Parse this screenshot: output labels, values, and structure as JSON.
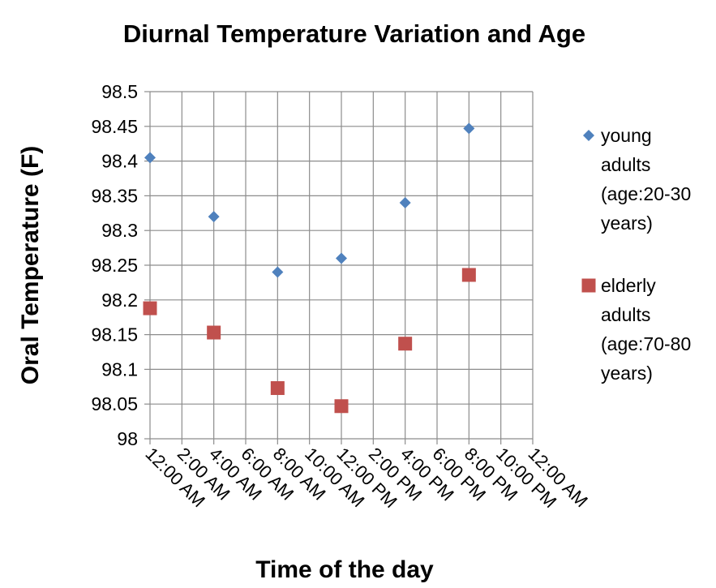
{
  "chart_data": {
    "type": "scatter",
    "title": "Diurnal Temperature Variation and Age",
    "xlabel": "Time of the day",
    "ylabel": "Oral Temperature (F)",
    "x_tick_labels": [
      "12:00 AM",
      "2:00 AM",
      "4:00 AM",
      "6:00 AM",
      "8:00 AM",
      "10:00 AM",
      "12:00 PM",
      "2:00 PM",
      "4:00 PM",
      "6:00 PM",
      "8:00 PM",
      "10:00 PM",
      "12:00 AM"
    ],
    "y_tick_labels": [
      "98",
      "98.05",
      "98.1",
      "98.15",
      "98.2",
      "98.25",
      "98.3",
      "98.35",
      "98.4",
      "98.45",
      "98.5"
    ],
    "ylim": [
      98,
      98.5
    ],
    "grid": true,
    "legend_position": "right",
    "series": [
      {
        "name": "young adults (age:20-30 years)",
        "legend_lines": [
          "young",
          "adults",
          "(age:20-30",
          "years)"
        ],
        "marker": "diamond",
        "color": "#4f81bd",
        "x": [
          "12:00 AM",
          "4:00 AM",
          "8:00 AM",
          "12:00 PM",
          "4:00 PM",
          "8:00 PM"
        ],
        "y": [
          98.405,
          98.32,
          98.24,
          98.26,
          98.34,
          98.447
        ]
      },
      {
        "name": "elderly adults (age:70-80 years)",
        "legend_lines": [
          "elderly",
          "adults",
          "(age:70-80",
          "years)"
        ],
        "marker": "square",
        "color": "#c0504d",
        "x": [
          "12:00 AM",
          "4:00 AM",
          "8:00 AM",
          "12:00 PM",
          "4:00 PM",
          "8:00 PM"
        ],
        "y": [
          98.188,
          98.153,
          98.073,
          98.047,
          98.137,
          98.236
        ]
      }
    ]
  }
}
